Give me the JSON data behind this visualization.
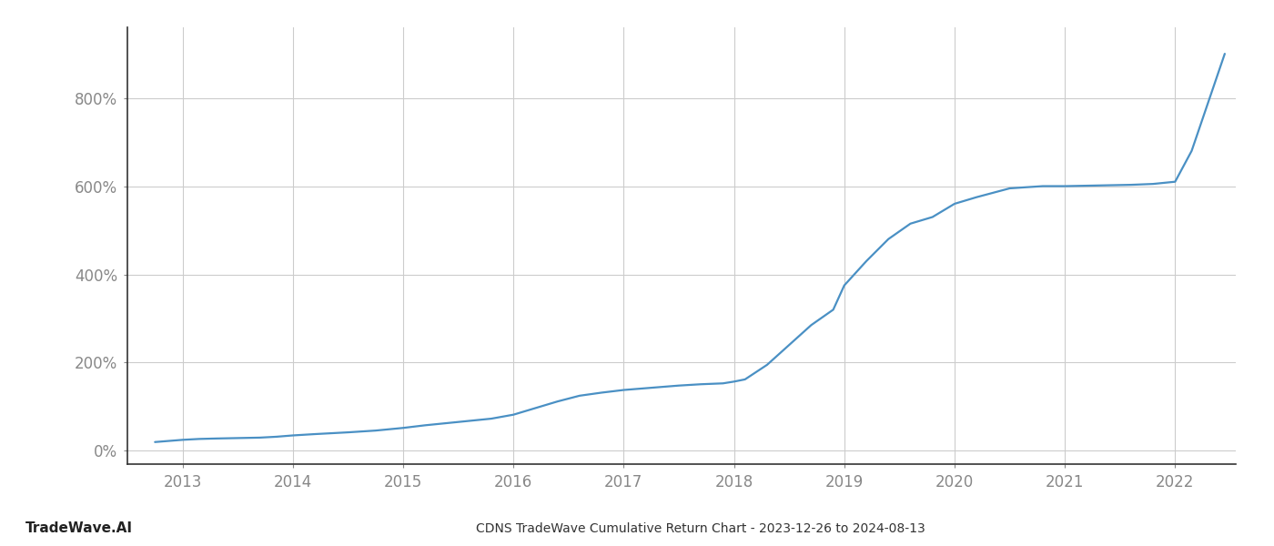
{
  "title": "CDNS TradeWave Cumulative Return Chart - 2023-12-26 to 2024-08-13",
  "watermark": "TradeWave.AI",
  "line_color": "#4a90c4",
  "line_width": 1.6,
  "background_color": "#ffffff",
  "grid_color": "#cccccc",
  "xlim": [
    2012.5,
    2022.55
  ],
  "ylim": [
    -30,
    960
  ],
  "yticks": [
    0,
    200,
    400,
    600,
    800
  ],
  "xticks": [
    2013,
    2014,
    2015,
    2016,
    2017,
    2018,
    2019,
    2020,
    2021,
    2022
  ],
  "x": [
    2012.75,
    2013.0,
    2013.15,
    2013.3,
    2013.5,
    2013.7,
    2013.85,
    2014.0,
    2014.2,
    2014.5,
    2014.75,
    2015.0,
    2015.2,
    2015.4,
    2015.6,
    2015.8,
    2016.0,
    2016.2,
    2016.4,
    2016.6,
    2016.8,
    2017.0,
    2017.1,
    2017.3,
    2017.5,
    2017.7,
    2017.9,
    2018.0,
    2018.1,
    2018.3,
    2018.5,
    2018.7,
    2018.9,
    2019.0,
    2019.2,
    2019.4,
    2019.6,
    2019.8,
    2020.0,
    2020.2,
    2020.5,
    2020.8,
    2021.0,
    2021.2,
    2021.4,
    2021.6,
    2021.8,
    2022.0,
    2022.15,
    2022.3,
    2022.45
  ],
  "y": [
    20,
    25,
    27,
    28,
    29,
    30,
    32,
    35,
    38,
    42,
    46,
    52,
    58,
    63,
    68,
    73,
    82,
    97,
    112,
    125,
    132,
    138,
    140,
    144,
    148,
    151,
    153,
    157,
    162,
    195,
    240,
    285,
    320,
    375,
    430,
    480,
    515,
    530,
    560,
    575,
    595,
    600,
    600,
    601,
    602,
    603,
    605,
    610,
    680,
    790,
    900
  ]
}
